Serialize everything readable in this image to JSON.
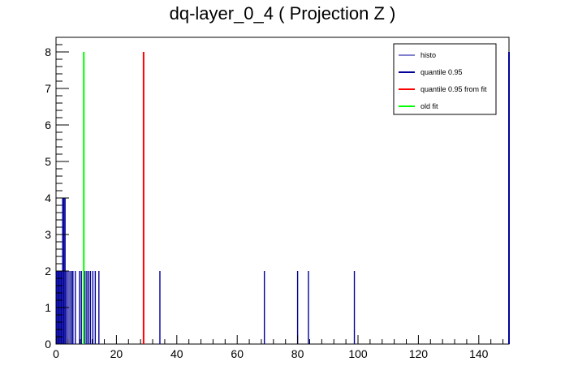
{
  "chart_data": {
    "type": "bar",
    "title": "dq-layer_0_4 ( Projection Z )",
    "xlabel": "",
    "ylabel": "",
    "xlim": [
      0,
      150
    ],
    "ylim": [
      0,
      8.4
    ],
    "x_ticks": [
      0,
      20,
      40,
      60,
      80,
      100,
      120,
      140
    ],
    "y_ticks": [
      0,
      1,
      2,
      3,
      4,
      5,
      6,
      7,
      8
    ],
    "grid": false,
    "legend_position": "top-right",
    "legend": [
      {
        "label": "histo",
        "color": "#000099",
        "style": "thin"
      },
      {
        "label": "quantile 0.95",
        "color": "#000099",
        "style": "thick"
      },
      {
        "label": "quantile 0.95 from fit",
        "color": "#ff0000",
        "style": "thick"
      },
      {
        "label": "old fit",
        "color": "#00ff00",
        "style": "thick"
      }
    ],
    "series": [
      {
        "name": "histo",
        "color": "#000099",
        "points": [
          {
            "x": 0.2,
            "y": 2
          },
          {
            "x": 0.6,
            "y": 2
          },
          {
            "x": 1.0,
            "y": 2
          },
          {
            "x": 1.4,
            "y": 2
          },
          {
            "x": 1.8,
            "y": 2
          },
          {
            "x": 2.2,
            "y": 4
          },
          {
            "x": 2.6,
            "y": 4
          },
          {
            "x": 3.0,
            "y": 4
          },
          {
            "x": 3.4,
            "y": 2
          },
          {
            "x": 4.0,
            "y": 2
          },
          {
            "x": 4.6,
            "y": 2
          },
          {
            "x": 5.2,
            "y": 2
          },
          {
            "x": 5.6,
            "y": 2
          },
          {
            "x": 6.4,
            "y": 2
          },
          {
            "x": 7.8,
            "y": 2
          },
          {
            "x": 8.4,
            "y": 2
          },
          {
            "x": 9.6,
            "y": 2
          },
          {
            "x": 10.2,
            "y": 2
          },
          {
            "x": 10.8,
            "y": 2
          },
          {
            "x": 11.4,
            "y": 2
          },
          {
            "x": 12.2,
            "y": 2
          },
          {
            "x": 13.0,
            "y": 2
          },
          {
            "x": 14.2,
            "y": 2
          },
          {
            "x": 34.4,
            "y": 2
          },
          {
            "x": 69.0,
            "y": 2
          },
          {
            "x": 80.0,
            "y": 2
          },
          {
            "x": 83.6,
            "y": 2
          },
          {
            "x": 98.8,
            "y": 2
          }
        ]
      },
      {
        "name": "quantile 0.95",
        "color": "#000099",
        "x": 150,
        "y": 8
      },
      {
        "name": "quantile 0.95 from fit",
        "color": "#ff0000",
        "x": 29.0,
        "y": 8
      },
      {
        "name": "old fit",
        "color": "#00ff00",
        "x": 9.2,
        "y": 8
      }
    ]
  }
}
